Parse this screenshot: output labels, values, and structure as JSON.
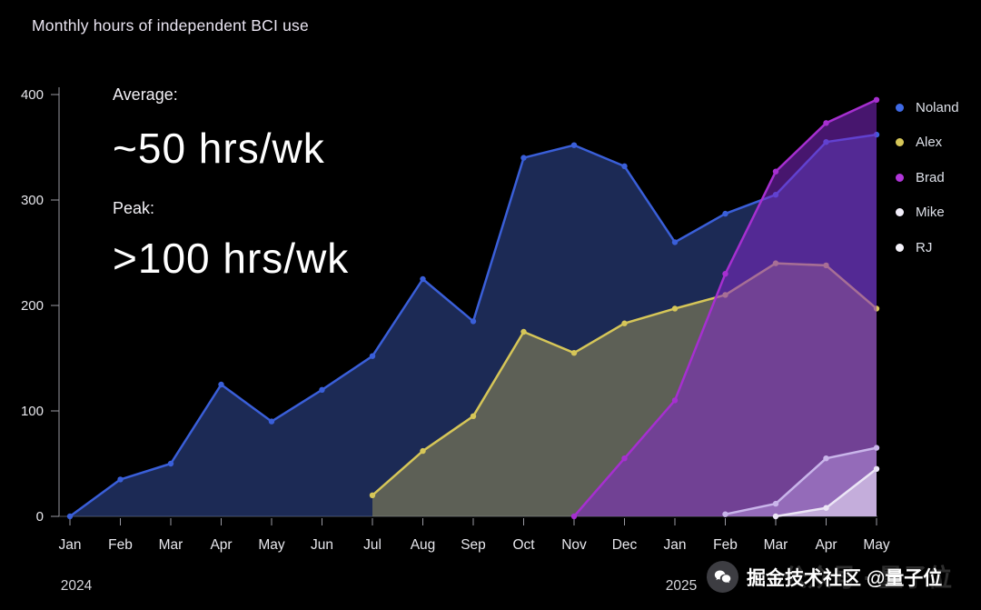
{
  "title": "Monthly hours of independent BCI use",
  "annotations": {
    "average_label": "Average:",
    "average_value": "~50 hrs/wk",
    "peak_label": "Peak:",
    "peak_value": ">100 hrs/wk"
  },
  "legend": {
    "position": "right",
    "items": [
      {
        "label": "Noland",
        "color": "#3f6ae6"
      },
      {
        "label": "Alex",
        "color": "#d6c658"
      },
      {
        "label": "Brad",
        "color": "#b136d9"
      },
      {
        "label": "Mike",
        "color": "#f2eefa"
      },
      {
        "label": "RJ",
        "color": "#f6f3fb"
      }
    ]
  },
  "watermark": {
    "text": "掘金技术社区 @量子位",
    "ghost_text": "公众号 · 量子位",
    "icon": "wechat-icon"
  },
  "chart_data": {
    "type": "area",
    "title": "Monthly hours of independent BCI use",
    "xlabel": "",
    "ylabel": "",
    "ylim": [
      0,
      400
    ],
    "y_ticks": [
      0,
      100,
      200,
      300,
      400
    ],
    "grid": false,
    "legend_position": "right",
    "categories": [
      "Jan",
      "Feb",
      "Mar",
      "Apr",
      "May",
      "Jun",
      "Jul",
      "Aug",
      "Sep",
      "Oct",
      "Nov",
      "Dec",
      "Jan",
      "Feb",
      "Mar",
      "Apr",
      "May"
    ],
    "year_labels": [
      {
        "text": "2024",
        "month_index": 0
      },
      {
        "text": "2025",
        "month_index": 12
      }
    ],
    "axis_color": "#9a9aa2",
    "tick_label_color": "#e7e7ec",
    "series": [
      {
        "name": "Noland",
        "color": "#3a5fd9",
        "fill": "rgba(56,84,170,0.5)",
        "values": [
          0,
          35,
          50,
          125,
          90,
          120,
          152,
          225,
          185,
          340,
          352,
          332,
          260,
          287,
          305,
          355,
          362
        ]
      },
      {
        "name": "Alex",
        "color": "#d6c658",
        "fill": "rgba(214,198,88,0.35)",
        "values": [
          null,
          null,
          null,
          null,
          null,
          null,
          20,
          62,
          95,
          175,
          155,
          183,
          197,
          210,
          240,
          238,
          197
        ]
      },
      {
        "name": "Brad",
        "color": "#a62fd0",
        "fill": "rgba(130,40,200,0.55)",
        "values": [
          null,
          null,
          null,
          null,
          null,
          null,
          null,
          null,
          null,
          null,
          0,
          55,
          110,
          230,
          327,
          373,
          395
        ]
      },
      {
        "name": "Mike",
        "color": "#c9b5ea",
        "fill": "rgba(190,160,230,0.45)",
        "values": [
          null,
          null,
          null,
          null,
          null,
          null,
          null,
          null,
          null,
          null,
          null,
          null,
          null,
          2,
          12,
          55,
          65
        ]
      },
      {
        "name": "RJ",
        "color": "#ece6f6",
        "fill": "rgba(235,228,248,0.55)",
        "values": [
          null,
          null,
          null,
          null,
          null,
          null,
          null,
          null,
          null,
          null,
          null,
          null,
          null,
          null,
          0,
          8,
          45
        ]
      }
    ]
  }
}
